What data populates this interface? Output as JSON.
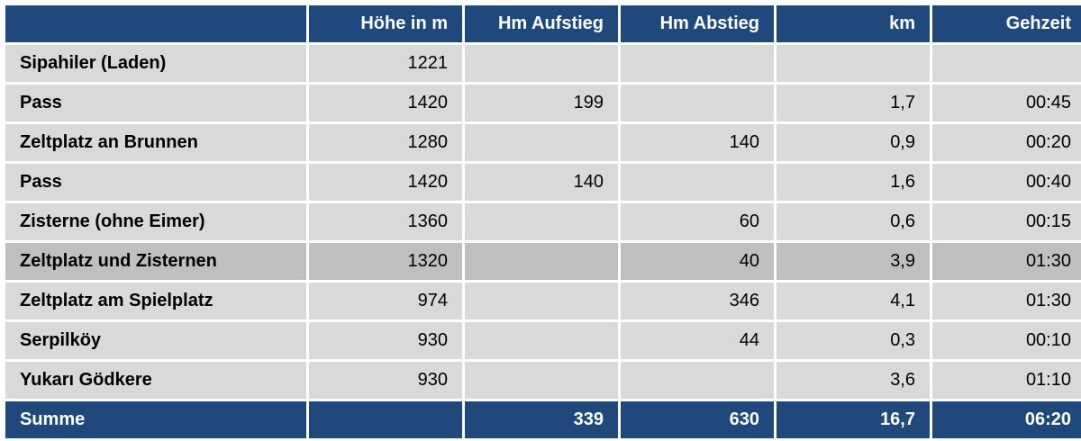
{
  "table": {
    "headers": {
      "name": "",
      "hoehe": "Höhe in m",
      "aufstieg": "Hm Aufstieg",
      "abstieg": "Hm Abstieg",
      "km": "km",
      "gehzeit": "Gehzeit"
    },
    "rows": [
      {
        "name": "Sipahiler (Laden)",
        "hoehe": "1221",
        "aufstieg": "",
        "abstieg": "",
        "km": "",
        "gehzeit": ""
      },
      {
        "name": "Pass",
        "hoehe": "1420",
        "aufstieg": "199",
        "abstieg": "",
        "km": "1,7",
        "gehzeit": "00:45"
      },
      {
        "name": "Zeltplatz an Brunnen",
        "hoehe": "1280",
        "aufstieg": "",
        "abstieg": "140",
        "km": "0,9",
        "gehzeit": "00:20"
      },
      {
        "name": "Pass",
        "hoehe": "1420",
        "aufstieg": "140",
        "abstieg": "",
        "km": "1,6",
        "gehzeit": "00:40"
      },
      {
        "name": "Zisterne (ohne Eimer)",
        "hoehe": "1360",
        "aufstieg": "",
        "abstieg": "60",
        "km": "0,6",
        "gehzeit": "00:15"
      },
      {
        "name": "Zeltplatz und Zisternen",
        "hoehe": "1320",
        "aufstieg": "",
        "abstieg": "40",
        "km": "3,9",
        "gehzeit": "01:30"
      },
      {
        "name": "Zeltplatz am Spielplatz",
        "hoehe": "974",
        "aufstieg": "",
        "abstieg": "346",
        "km": "4,1",
        "gehzeit": "01:30"
      },
      {
        "name": "Serpilköy",
        "hoehe": "930",
        "aufstieg": "",
        "abstieg": "44",
        "km": "0,3",
        "gehzeit": "00:10"
      },
      {
        "name": "Yukarı Gödkere",
        "hoehe": "930",
        "aufstieg": "",
        "abstieg": "",
        "km": "3,6",
        "gehzeit": "01:10"
      }
    ],
    "summary": {
      "name": "Summe",
      "hoehe": "",
      "aufstieg": "339",
      "abstieg": "630",
      "km": "16,7",
      "gehzeit": "06:20"
    }
  },
  "colors": {
    "header_bg": "#1f497d",
    "header_text": "#ffffff",
    "cell_bg": "#d9d9d9",
    "highlight_bg": "#bfbfbf"
  }
}
